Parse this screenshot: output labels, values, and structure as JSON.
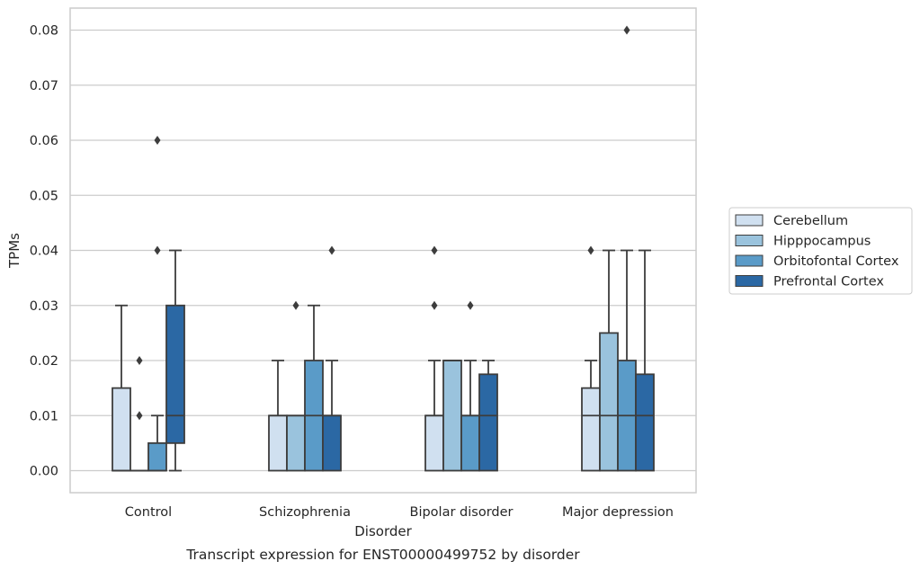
{
  "chart_data": {
    "type": "boxplot",
    "xlabel": "Disorder",
    "ylabel": "TPMs",
    "caption": "Transcript expression for ENST00000499752 by disorder",
    "categories": [
      "Control",
      "Schizophrenia",
      "Bipolar disorder",
      "Major depression"
    ],
    "ylim": [
      -0.004,
      0.084
    ],
    "yticks": [
      "0.00",
      "0.01",
      "0.02",
      "0.03",
      "0.04",
      "0.05",
      "0.06",
      "0.07",
      "0.08"
    ],
    "grid": "horizontal",
    "legend_position": "right",
    "series": [
      {
        "name": "Cerebellum",
        "color": "#d0e0f0",
        "boxes": [
          {
            "whisker_low": 0,
            "q1": 0,
            "median": 0,
            "q3": 0.015,
            "whisker_high": 0.03,
            "outliers": []
          },
          {
            "whisker_low": 0,
            "q1": 0,
            "median": 0.01,
            "q3": 0.01,
            "whisker_high": 0.02,
            "outliers": []
          },
          {
            "whisker_low": 0,
            "q1": 0,
            "median": 0.01,
            "q3": 0.01,
            "whisker_high": 0.02,
            "outliers": [
              0.03,
              0.04
            ]
          },
          {
            "whisker_low": 0,
            "q1": 0,
            "median": 0.01,
            "q3": 0.015,
            "whisker_high": 0.02,
            "outliers": [
              0.04
            ]
          }
        ]
      },
      {
        "name": "Hipppocampus",
        "color": "#9ac3dd",
        "boxes": [
          {
            "whisker_low": 0,
            "q1": 0,
            "median": 0,
            "q3": 0,
            "whisker_high": 0,
            "outliers": [
              0.01,
              0.02
            ]
          },
          {
            "whisker_low": 0,
            "q1": 0,
            "median": 0.01,
            "q3": 0.01,
            "whisker_high": 0.01,
            "outliers": [
              0.03
            ]
          },
          {
            "whisker_low": 0,
            "q1": 0,
            "median": 0.02,
            "q3": 0.02,
            "whisker_high": 0.02,
            "outliers": []
          },
          {
            "whisker_low": 0,
            "q1": 0,
            "median": 0.01,
            "q3": 0.025,
            "whisker_high": 0.04,
            "outliers": []
          }
        ]
      },
      {
        "name": "Orbitofontal Cortex",
        "color": "#5a9bc8",
        "boxes": [
          {
            "whisker_low": 0,
            "q1": 0,
            "median": 0,
            "q3": 0.005,
            "whisker_high": 0.01,
            "outliers": [
              0.04,
              0.06
            ]
          },
          {
            "whisker_low": 0,
            "q1": 0,
            "median": 0.01,
            "q3": 0.02,
            "whisker_high": 0.03,
            "outliers": []
          },
          {
            "whisker_low": 0,
            "q1": 0,
            "median": 0.01,
            "q3": 0.01,
            "whisker_high": 0.02,
            "outliers": [
              0.03
            ]
          },
          {
            "whisker_low": 0,
            "q1": 0,
            "median": 0.01,
            "q3": 0.02,
            "whisker_high": 0.04,
            "outliers": [
              0.08
            ]
          }
        ]
      },
      {
        "name": "Prefrontal Cortex",
        "color": "#2b68a4",
        "boxes": [
          {
            "whisker_low": 0,
            "q1": 0.005,
            "median": 0.01,
            "q3": 0.03,
            "whisker_high": 0.04,
            "outliers": []
          },
          {
            "whisker_low": 0,
            "q1": 0,
            "median": 0.01,
            "q3": 0.01,
            "whisker_high": 0.02,
            "outliers": [
              0.04
            ]
          },
          {
            "whisker_low": 0,
            "q1": 0,
            "median": 0.01,
            "q3": 0.0175,
            "whisker_high": 0.02,
            "outliers": []
          },
          {
            "whisker_low": 0,
            "q1": 0,
            "median": 0.01,
            "q3": 0.0175,
            "whisker_high": 0.04,
            "outliers": []
          }
        ]
      }
    ]
  }
}
